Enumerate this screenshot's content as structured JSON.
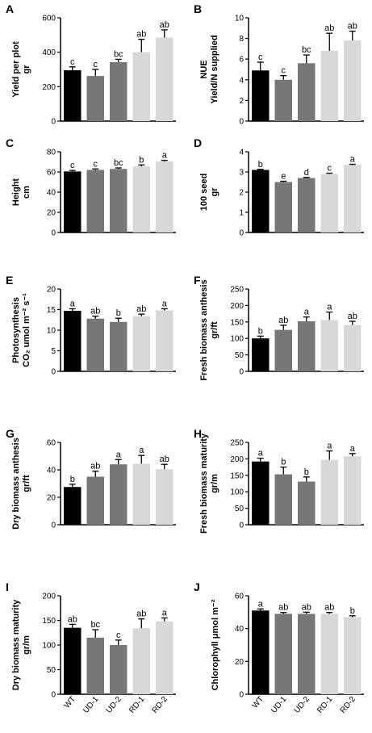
{
  "chart_data": [
    {
      "type": "bar",
      "panel": "A",
      "ylabel": [
        "Yield per plot",
        "gr"
      ],
      "categories": [
        "WT",
        "UD-1",
        "UD-2",
        "RD-1",
        "RD-2"
      ],
      "values": [
        295,
        262,
        342,
        400,
        485
      ],
      "errors": [
        20,
        38,
        17,
        75,
        45
      ],
      "letters": [
        "c",
        "c",
        "bc",
        "ab",
        "ab"
      ],
      "ylim": [
        0,
        600
      ],
      "yticks": [
        0,
        200,
        400,
        600
      ],
      "colors": [
        "#000000",
        "#777777",
        "#777777",
        "#d8d8d8",
        "#d8d8d8"
      ]
    },
    {
      "type": "bar",
      "panel": "B",
      "ylabel": [
        "NUE",
        "Yield/N supplied"
      ],
      "categories": [
        "WT",
        "UD-1",
        "UD-2",
        "RD-1",
        "RD-2"
      ],
      "values": [
        4.9,
        4.0,
        5.6,
        6.8,
        7.8
      ],
      "errors": [
        0.8,
        0.4,
        0.8,
        1.7,
        0.9
      ],
      "letters": [
        "c",
        "c",
        "bc",
        "ab",
        "ab"
      ],
      "ylim": [
        0,
        10
      ],
      "yticks": [
        0,
        2,
        4,
        6,
        8,
        10
      ],
      "colors": [
        "#000000",
        "#777777",
        "#777777",
        "#d8d8d8",
        "#d8d8d8"
      ]
    },
    {
      "type": "bar",
      "panel": "C",
      "ylabel": [
        "Height",
        "cm"
      ],
      "categories": [
        "WT",
        "UD-1",
        "UD-2",
        "RD-1",
        "RD-2"
      ],
      "values": [
        60.5,
        62,
        63,
        65.5,
        70.5
      ],
      "errors": [
        1,
        1,
        1,
        1.5,
        1
      ],
      "letters": [
        "c",
        "c",
        "bc",
        "b",
        "a"
      ],
      "ylim": [
        0,
        80
      ],
      "yticks": [
        0,
        20,
        40,
        60,
        80
      ],
      "colors": [
        "#000000",
        "#777777",
        "#777777",
        "#d8d8d8",
        "#d8d8d8"
      ]
    },
    {
      "type": "bar",
      "panel": "D",
      "ylabel": [
        "100 seed",
        "gr"
      ],
      "categories": [
        "WT",
        "UD-1",
        "UD-2",
        "RD-1",
        "RD-2"
      ],
      "values": [
        3.1,
        2.5,
        2.7,
        2.9,
        3.35
      ],
      "errors": [
        0.03,
        0.04,
        0.03,
        0.04,
        0.03
      ],
      "letters": [
        "b",
        "e",
        "d",
        "c",
        "a"
      ],
      "ylim": [
        0,
        4
      ],
      "yticks": [
        0,
        1,
        2,
        3,
        4
      ],
      "colors": [
        "#000000",
        "#777777",
        "#777777",
        "#d8d8d8",
        "#d8d8d8"
      ]
    },
    {
      "type": "bar",
      "panel": "E",
      "ylabel": [
        "Photosynthesis",
        "CO₂ umol m⁻² s⁻¹"
      ],
      "categories": [
        "WT",
        "UD-1",
        "UD-2",
        "RD-1",
        "RD-2"
      ],
      "values": [
        14.7,
        12.8,
        12,
        13.4,
        14.8
      ],
      "errors": [
        0.5,
        0.6,
        0.9,
        0.5,
        0.4
      ],
      "letters": [
        "a",
        "ab",
        "b",
        "ab",
        "a"
      ],
      "ylim": [
        0,
        20
      ],
      "yticks": [
        0,
        5,
        10,
        15,
        20
      ],
      "colors": [
        "#000000",
        "#777777",
        "#777777",
        "#d8d8d8",
        "#d8d8d8"
      ]
    },
    {
      "type": "bar",
      "panel": "F",
      "ylabel": [
        "Fresh biomass anthesis",
        "gr/ft"
      ],
      "categories": [
        "WT",
        "UD-1",
        "UD-2",
        "RD-1",
        "RD-2"
      ],
      "values": [
        100,
        126,
        152,
        156,
        141
      ],
      "errors": [
        7,
        14,
        13,
        24,
        11
      ],
      "letters": [
        "b",
        "ab",
        "a",
        "a",
        "ab"
      ],
      "ylim": [
        0,
        250
      ],
      "yticks": [
        0,
        50,
        100,
        150,
        200,
        250
      ],
      "colors": [
        "#000000",
        "#777777",
        "#777777",
        "#d8d8d8",
        "#d8d8d8"
      ]
    },
    {
      "type": "bar",
      "panel": "G",
      "ylabel": [
        "Dry biomass anthesis",
        "gr/ft"
      ],
      "categories": [
        "WT",
        "UD-1",
        "UD-2",
        "RD-1",
        "RD-2"
      ],
      "values": [
        27.5,
        35,
        44,
        44.5,
        40.5
      ],
      "errors": [
        2,
        4,
        3.5,
        6,
        3.5
      ],
      "letters": [
        "b",
        "ab",
        "a",
        "a",
        "ab"
      ],
      "ylim": [
        0,
        60
      ],
      "yticks": [
        0,
        20,
        40,
        60
      ],
      "colors": [
        "#000000",
        "#777777",
        "#777777",
        "#d8d8d8",
        "#d8d8d8"
      ]
    },
    {
      "type": "bar",
      "panel": "H",
      "ylabel": [
        "Fresh biomass maturity",
        "gr/m"
      ],
      "categories": [
        "WT",
        "UD-1",
        "UD-2",
        "RD-1",
        "RD-2"
      ],
      "values": [
        192,
        153,
        131,
        197,
        208
      ],
      "errors": [
        10,
        22,
        14,
        27,
        8
      ],
      "letters": [
        "a",
        "b",
        "b",
        "a",
        "a"
      ],
      "ylim": [
        0,
        250
      ],
      "yticks": [
        0,
        50,
        100,
        150,
        200,
        250
      ],
      "colors": [
        "#000000",
        "#777777",
        "#777777",
        "#d8d8d8",
        "#d8d8d8"
      ]
    },
    {
      "type": "bar",
      "panel": "I",
      "ylabel": [
        "Dry biomass maturity",
        "gr/m"
      ],
      "categories": [
        "WT",
        "UD-1",
        "UD-2",
        "RD-1",
        "RD-2"
      ],
      "values": [
        135,
        115,
        100,
        134,
        148
      ],
      "errors": [
        7,
        16,
        10,
        19,
        7
      ],
      "letters": [
        "ab",
        "bc",
        "c",
        "ab",
        "a"
      ],
      "ylim": [
        0,
        200
      ],
      "yticks": [
        0,
        50,
        100,
        150,
        200
      ],
      "colors": [
        "#000000",
        "#777777",
        "#777777",
        "#d8d8d8",
        "#d8d8d8"
      ]
    },
    {
      "type": "bar",
      "panel": "J",
      "ylabel": [
        "Chlorophyll μmol m⁻²"
      ],
      "categories": [
        "WT",
        "UD-1",
        "UD-2",
        "RD-1",
        "RD-2"
      ],
      "values": [
        51,
        49,
        49,
        49,
        47
      ],
      "errors": [
        1,
        0.8,
        1,
        0.8,
        0.8
      ],
      "letters": [
        "a",
        "ab",
        "ab",
        "ab",
        "b"
      ],
      "ylim": [
        0,
        60
      ],
      "yticks": [
        0,
        20,
        40,
        60
      ],
      "colors": [
        "#000000",
        "#777777",
        "#777777",
        "#d8d8d8",
        "#d8d8d8"
      ]
    }
  ]
}
